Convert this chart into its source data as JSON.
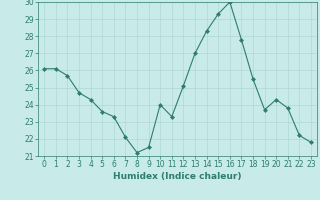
{
  "x": [
    0,
    1,
    2,
    3,
    4,
    5,
    6,
    7,
    8,
    9,
    10,
    11,
    12,
    13,
    14,
    15,
    16,
    17,
    18,
    19,
    20,
    21,
    22,
    23
  ],
  "y": [
    26.1,
    26.1,
    25.7,
    24.7,
    24.3,
    23.6,
    23.3,
    22.1,
    21.2,
    21.5,
    24.0,
    23.3,
    25.1,
    27.0,
    28.3,
    29.3,
    30.0,
    27.8,
    25.5,
    23.7,
    24.3,
    23.8,
    22.2,
    21.8
  ],
  "line_color": "#2e7d6e",
  "marker": "D",
  "marker_size": 2,
  "bg_color": "#c8eae8",
  "grid_color": "#b0d8d4",
  "xlabel": "Humidex (Indice chaleur)",
  "xlim": [
    -0.5,
    23.5
  ],
  "ylim": [
    21,
    30
  ],
  "yticks": [
    21,
    22,
    23,
    24,
    25,
    26,
    27,
    28,
    29,
    30
  ],
  "xticks": [
    0,
    1,
    2,
    3,
    4,
    5,
    6,
    7,
    8,
    9,
    10,
    11,
    12,
    13,
    14,
    15,
    16,
    17,
    18,
    19,
    20,
    21,
    22,
    23
  ],
  "tick_color": "#2e7d6e",
  "label_fontsize": 6.5,
  "tick_fontsize": 5.5
}
